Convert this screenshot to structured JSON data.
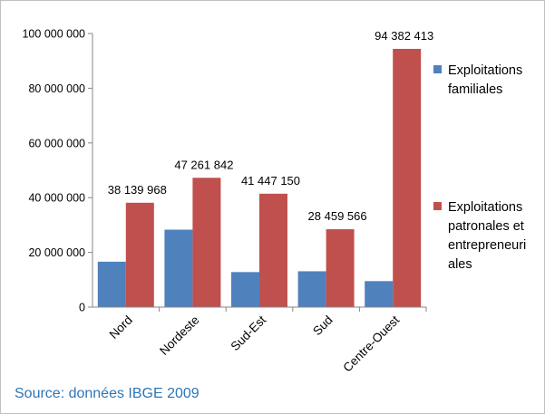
{
  "chart_data": {
    "type": "bar",
    "title": "",
    "xlabel": "",
    "ylabel": "",
    "categories": [
      "Nord",
      "Nordeste",
      "Sud-Est",
      "Sud",
      "Centre-Ouest"
    ],
    "series": [
      {
        "name": "Exploitations familiales",
        "color": "#4f81bd",
        "values": [
          16600000,
          28300000,
          12800000,
          13100000,
          9500000
        ],
        "data_labels": [
          "",
          "",
          "",
          "",
          ""
        ]
      },
      {
        "name": "Exploitations patronales et entrepreneuriales",
        "color": "#c0504d",
        "values": [
          38139968,
          47261842,
          41447150,
          28459566,
          94382413
        ],
        "data_labels": [
          "38 139 968",
          "47 261 842",
          "41 447 150",
          "28 459 566",
          "94 382 413"
        ]
      }
    ],
    "ylim": [
      0,
      100000000
    ],
    "yticks": [
      0,
      20000000,
      40000000,
      60000000,
      80000000,
      100000000
    ],
    "ytick_labels": [
      "0",
      "20 000 000",
      "40 000 000",
      "60 000 000",
      "80 000 000",
      "100 000 000"
    ],
    "grid": false,
    "legend": {
      "position": "right",
      "lines": [
        [
          "Exploitations",
          "familiales"
        ],
        [
          "Exploitations",
          "patronales et",
          "entrepreneuri",
          "ales"
        ]
      ]
    }
  },
  "source_note": "Source: données IBGE 2009"
}
